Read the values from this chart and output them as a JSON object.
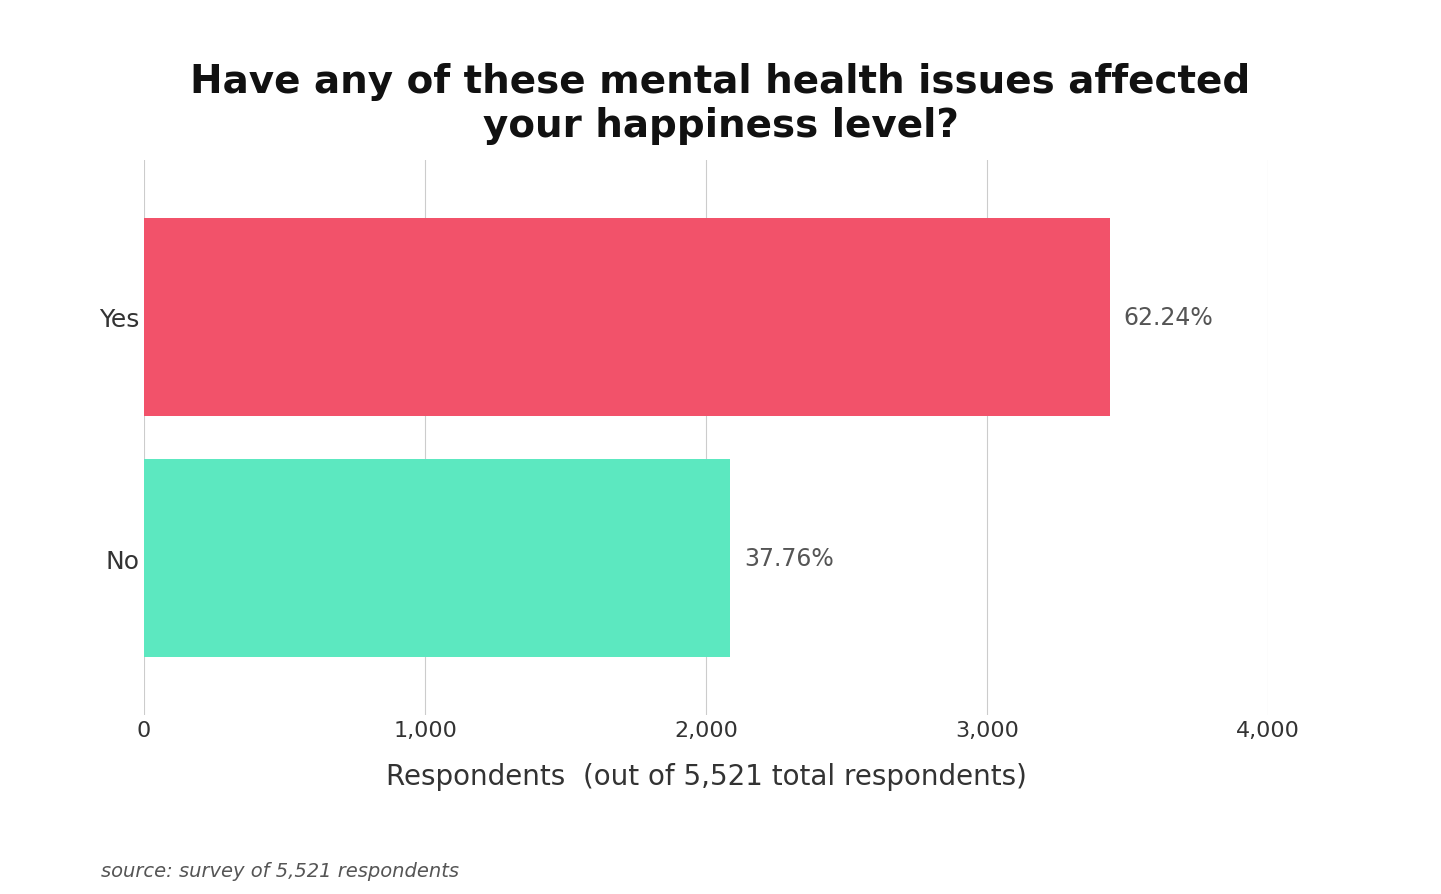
{
  "title_line1": "Have any of these mental health issues affected",
  "title_line2": "your happiness level?",
  "categories": [
    "No",
    "Yes"
  ],
  "values": [
    2084.8,
    3436.2
  ],
  "percentages": [
    "37.76%",
    "62.24%"
  ],
  "bar_colors": [
    "#5CE8C0",
    "#F2526A"
  ],
  "xlim": [
    0,
    4000
  ],
  "xticks": [
    0,
    1000,
    2000,
    3000,
    4000
  ],
  "xtick_labels": [
    "0",
    "1,000",
    "2,000",
    "3,000",
    "4,000"
  ],
  "xlabel": "Respondents  (out of 5,521 total respondents)",
  "source_text": "source: survey of 5,521 respondents",
  "background_color": "#ffffff",
  "bar_height": 0.82,
  "title_fontsize": 28,
  "tick_fontsize": 16,
  "xlabel_fontsize": 20,
  "pct_fontsize": 17,
  "source_fontsize": 14,
  "ytick_fontsize": 18
}
